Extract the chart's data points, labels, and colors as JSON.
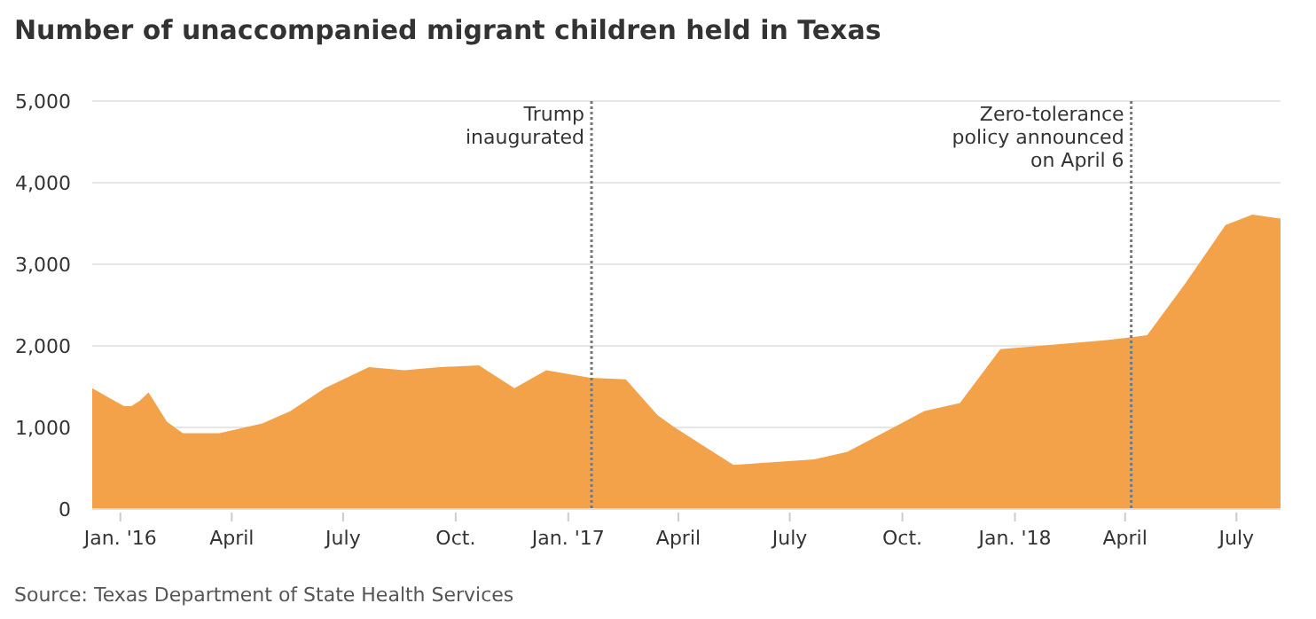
{
  "chart_data": {
    "type": "area",
    "title": "Number of unaccompanied migrant children held in Texas",
    "x": [
      "2015-12-09",
      "2016-01-04",
      "2016-01-10",
      "2016-01-17",
      "2016-01-24",
      "2016-02-08",
      "2016-02-21",
      "2016-03-22",
      "2016-04-26",
      "2016-05-19",
      "2016-06-16",
      "2016-07-22",
      "2016-08-20",
      "2016-09-18",
      "2016-10-20",
      "2016-11-18",
      "2016-12-14",
      "2017-01-19",
      "2017-02-17",
      "2017-03-15",
      "2017-03-29",
      "2017-05-16",
      "2017-07-21",
      "2017-08-17",
      "2017-10-19",
      "2017-11-17",
      "2017-12-20",
      "2018-03-17",
      "2018-04-19",
      "2018-05-20",
      "2018-06-22",
      "2018-07-14",
      "2018-08-06"
    ],
    "series": [
      {
        "color": "#f3a24a",
        "values": [
          1480,
          1260,
          1260,
          1330,
          1430,
          1070,
          930,
          930,
          1050,
          1200,
          1480,
          1740,
          1700,
          1740,
          1760,
          1480,
          1700,
          1610,
          1590,
          1150,
          1000,
          540,
          610,
          700,
          1200,
          1300,
          1960,
          2070,
          2130,
          2760,
          3480,
          3610,
          3560
        ]
      }
    ],
    "xlim": [
      "2015-12-09",
      "2018-08-06"
    ],
    "xticks": [
      {
        "value": "2016-01-01",
        "label": "Jan. '16"
      },
      {
        "value": "2016-04-01",
        "label": "April"
      },
      {
        "value": "2016-07-01",
        "label": "July"
      },
      {
        "value": "2016-10-01",
        "label": "Oct."
      },
      {
        "value": "2017-01-01",
        "label": "Jan. '17"
      },
      {
        "value": "2017-04-01",
        "label": "April"
      },
      {
        "value": "2017-07-01",
        "label": "July"
      },
      {
        "value": "2017-10-01",
        "label": "Oct."
      },
      {
        "value": "2018-01-01",
        "label": "Jan. '18"
      },
      {
        "value": "2018-04-01",
        "label": "April"
      },
      {
        "value": "2018-07-01",
        "label": "July"
      }
    ],
    "ylim": [
      0,
      5000
    ],
    "yticks": [
      {
        "value": 0,
        "label": "0"
      },
      {
        "value": 1000,
        "label": "1,000"
      },
      {
        "value": 2000,
        "label": "2,000"
      },
      {
        "value": 3000,
        "label": "3,000"
      },
      {
        "value": 4000,
        "label": "4,000"
      },
      {
        "value": 5000,
        "label": "5,000"
      }
    ],
    "grid": "y",
    "ref_lines": [
      {
        "axis": "x",
        "value": "2017-01-20",
        "label": "Trump\ninaugurated",
        "color": "#777777",
        "line_style": "dotted"
      },
      {
        "axis": "x",
        "value": "2018-04-06",
        "label": "Zero-tolerance\npolicy announced\non April 6",
        "color": "#777777",
        "line_style": "dotted"
      }
    ],
    "annotations": [
      "Source: Texas Department of State Health Services"
    ]
  }
}
